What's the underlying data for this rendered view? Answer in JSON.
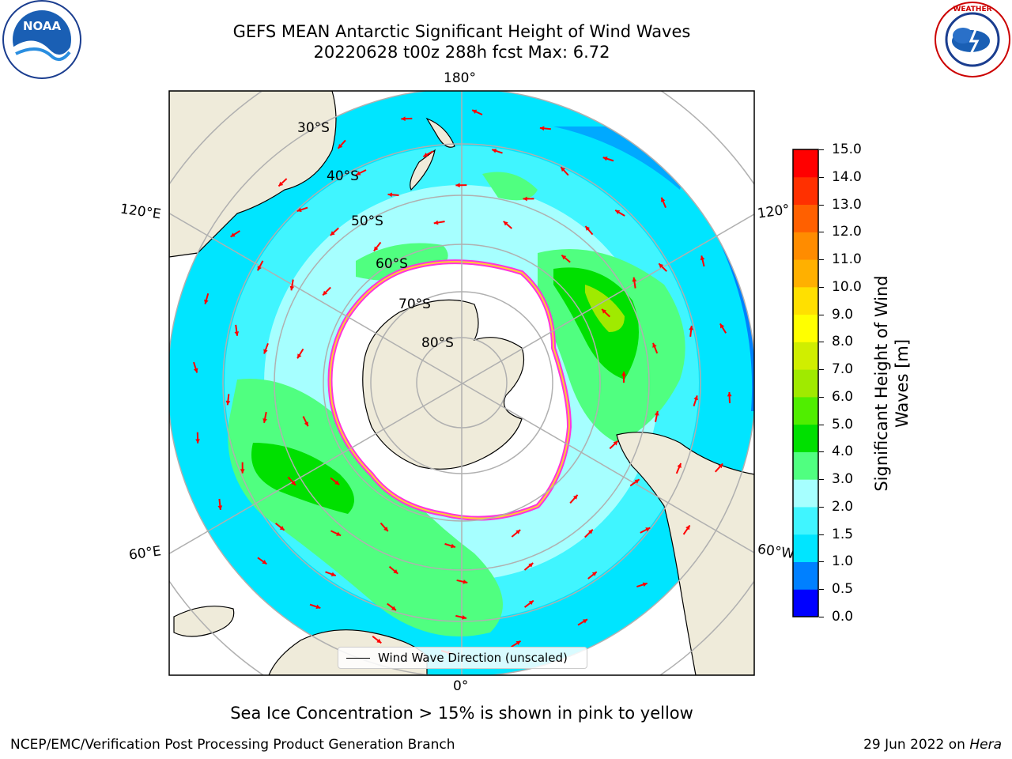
{
  "title": {
    "line1": "GEFS MEAN Antarctic Significant Height of Wind Waves",
    "line2": "20220628 t00z 288h fcst   Max: 6.72"
  },
  "logos": {
    "noaa": {
      "text": "NOAA",
      "ring_text": "NATIONAL OCEANIC AND ATMOSPHERIC ADMINISTRATION · U.S. DEPARTMENT OF COMMERCE"
    },
    "nws": {
      "ring_text": "NATIONAL WEATHER SERVICE"
    }
  },
  "map": {
    "projection": "south-polar-stereographic",
    "longitude_labels": {
      "top": "180°",
      "bottom": "0°",
      "upper_left": "120°E",
      "lower_left": "60°E",
      "upper_right": "120°",
      "lower_right": "60°W"
    },
    "latitude_labels": [
      "30°S",
      "40°S",
      "50°S",
      "60°S",
      "70°S",
      "80°S"
    ],
    "colors": {
      "land": "#efebda",
      "ice": "#ffffff",
      "ice_edge": "#ff33dd",
      "grid": "#b0b0b0",
      "arrow": "#ff0000"
    },
    "legend": {
      "label": "Wind Wave Direction (unscaled)"
    }
  },
  "colorbar": {
    "label": "Significant Height of Wind Waves [m]",
    "label_line1": "Significant Height of Wind",
    "label_line2": "Waves [m]",
    "ticks": [
      "0.0",
      "0.5",
      "1.0",
      "1.5",
      "2.0",
      "3.0",
      "4.0",
      "5.0",
      "6.0",
      "7.0",
      "8.0",
      "9.0",
      "10.0",
      "11.0",
      "12.0",
      "13.0",
      "14.0",
      "15.0"
    ],
    "colors": [
      "#0000ff",
      "#0080ff",
      "#00e5ff",
      "#40f5ff",
      "#a6ffff",
      "#50ff80",
      "#00e000",
      "#50ee00",
      "#a0ea00",
      "#d0ee00",
      "#ffff00",
      "#ffe000",
      "#ffb000",
      "#ff8c00",
      "#ff6000",
      "#ff3000",
      "#ff0000"
    ]
  },
  "footer": {
    "note": "Sea Ice Concentration > 15% is shown in pink to yellow",
    "left": "NCEP/EMC/Verification Post Processing Product Generation Branch",
    "right_prefix": "29 Jun 2022 on ",
    "right_host": "Hera"
  }
}
